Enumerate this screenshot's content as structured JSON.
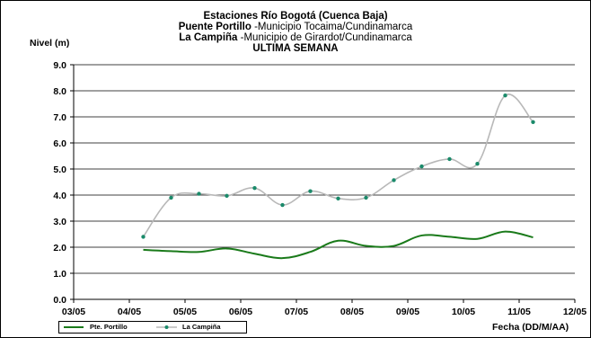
{
  "title": {
    "line1": "Estaciones Río Bogotá (Cuenca Baja)",
    "line2_bold": "Puente Portillo",
    "line2_rest": " -Municipio Tocaima/Cundinamarca",
    "line3_bold": "La Campiña",
    "line3_rest": " -Municipio de Girardot/Cundinamarca",
    "line4": "ULTIMA SEMANA"
  },
  "colors": {
    "portillo": "#1a7a1a",
    "campina_line": "#b8b8b8",
    "campina_marker": "#1a8a6a",
    "grid": "#000000"
  },
  "chart_data": {
    "type": "line",
    "ylabel": "Nivel (m)",
    "xlabel": "Fecha (DD/M/AA)",
    "ylim": [
      0,
      9
    ],
    "yticks": [
      "0.0",
      "1.0",
      "2.0",
      "3.0",
      "4.0",
      "5.0",
      "6.0",
      "7.0",
      "8.0",
      "9.0"
    ],
    "xticks": [
      "03/05",
      "04/05",
      "05/05",
      "06/05",
      "07/05",
      "08/05",
      "09/05",
      "10/05",
      "11/05",
      "12/05"
    ],
    "x_unit": "day",
    "xlim": [
      3,
      12
    ],
    "grid": "horizontal",
    "legend_position": "bottom-left",
    "series": [
      {
        "name": "Pte. Portillo",
        "x": [
          4.25,
          4.75,
          5.25,
          5.75,
          6.25,
          6.75,
          7.25,
          7.75,
          8.25,
          8.75,
          9.25,
          9.75,
          10.25,
          10.75,
          11.25
        ],
        "values": [
          1.9,
          1.85,
          1.82,
          1.95,
          1.75,
          1.58,
          1.82,
          2.25,
          2.05,
          2.05,
          2.45,
          2.4,
          2.32,
          2.6,
          2.38
        ]
      },
      {
        "name": "La Campiña",
        "x": [
          4.25,
          4.75,
          5.25,
          5.75,
          6.25,
          6.75,
          7.25,
          7.75,
          8.25,
          8.75,
          9.25,
          9.75,
          10.25,
          10.75,
          11.25
        ],
        "values": [
          2.4,
          3.9,
          4.05,
          3.97,
          4.27,
          3.62,
          4.15,
          3.87,
          3.9,
          4.57,
          5.1,
          5.38,
          5.2,
          7.82,
          6.8
        ]
      }
    ]
  }
}
